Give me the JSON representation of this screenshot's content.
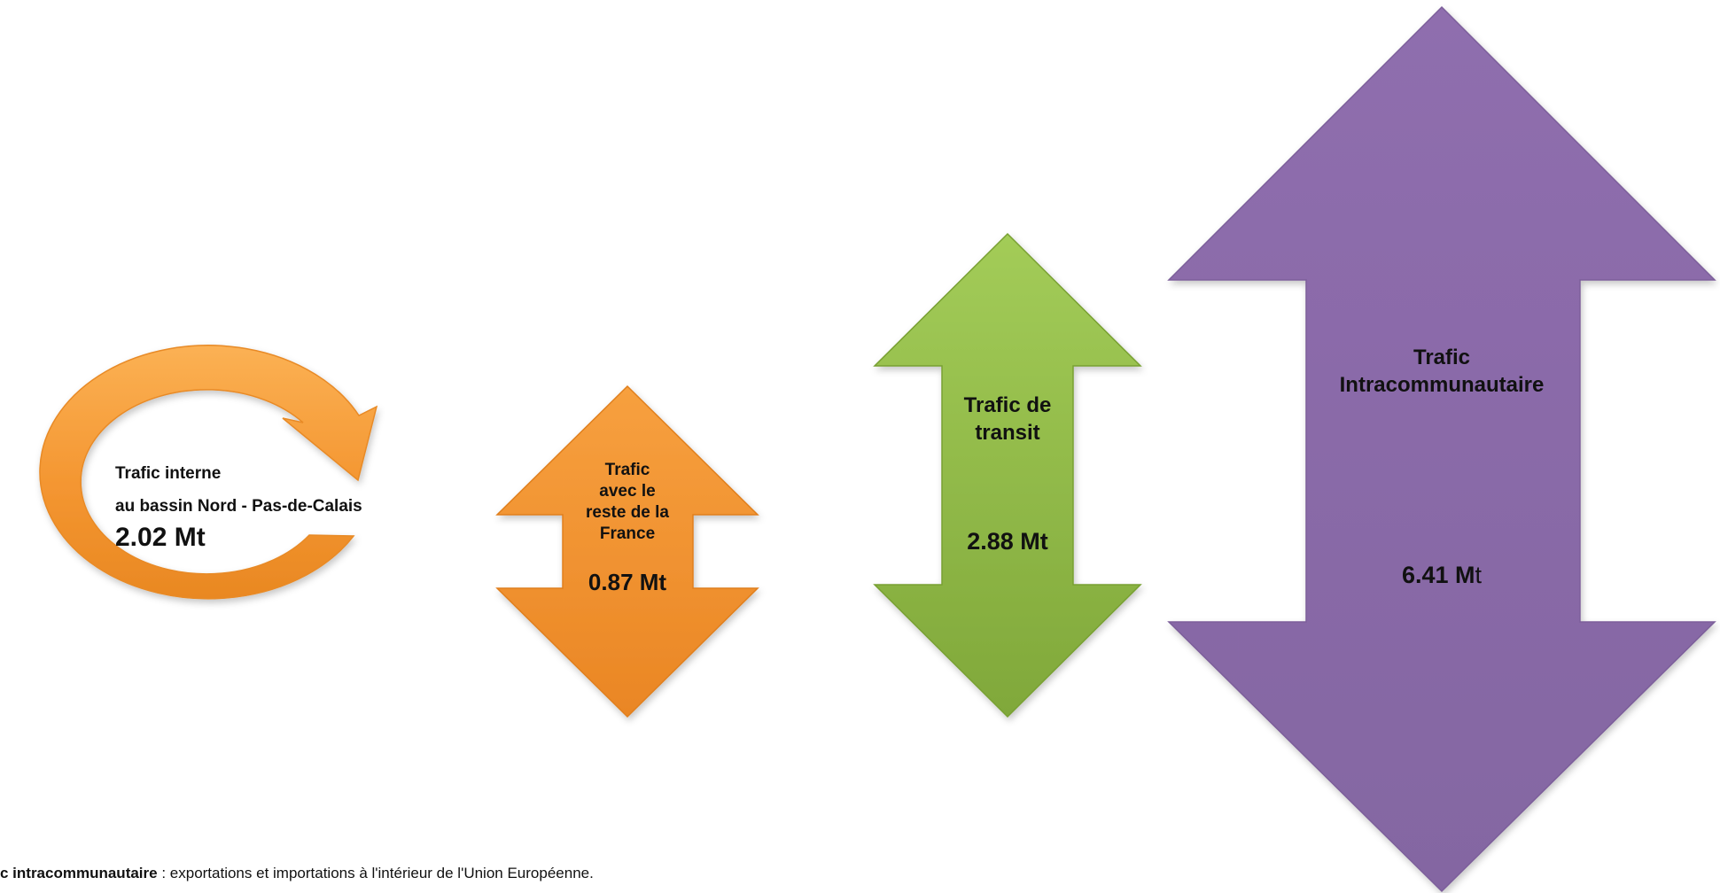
{
  "colors": {
    "internal": "#F59A34",
    "france": "#F08A2A",
    "transit": "#8EB543",
    "intra": "#8A6AA8"
  },
  "shapes": {
    "internal": {
      "title_line1": "Trafic interne",
      "title_line2": "au bassin Nord - Pas-de-Calais",
      "value": "2.02 Mt"
    },
    "france": {
      "title_lines": [
        "Trafic",
        "avec le",
        "reste de la",
        "France"
      ],
      "value": "0.87 Mt"
    },
    "transit": {
      "title_lines": [
        "Trafic de",
        "transit"
      ],
      "value": "2.88 Mt"
    },
    "intra": {
      "title_lines": [
        "Trafic",
        "Intracommunautaire"
      ],
      "value_main": "6.41 M",
      "value_tail": "t"
    }
  },
  "footnote": {
    "term": "c intracommunautaire",
    "text": " : exportations et importations à l'intérieur de l'Union Européenne."
  }
}
